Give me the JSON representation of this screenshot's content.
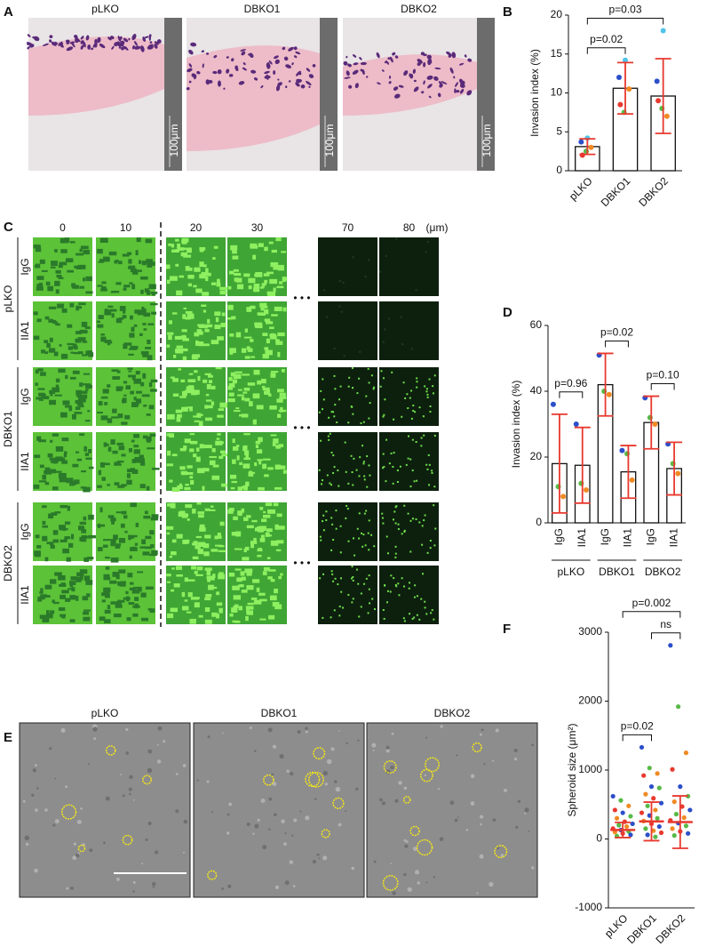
{
  "panels": {
    "A": {
      "letter": "A",
      "labels": [
        "pLKO",
        "DBKO1",
        "DBKO2"
      ],
      "scale_bar": "100μm"
    },
    "C": {
      "letter": "C",
      "columns": [
        "0",
        "10",
        "20",
        "30",
        "70",
        "80"
      ],
      "unit": "(μm)",
      "groups": [
        {
          "name": "pLKO",
          "rows": [
            "IgG",
            "IIA1"
          ]
        },
        {
          "name": "DBKO1",
          "rows": [
            "IgG",
            "IIA1"
          ]
        },
        {
          "name": "DBKO2",
          "rows": [
            "IgG",
            "IIA1"
          ]
        }
      ]
    },
    "E": {
      "letter": "E",
      "labels": [
        "pLKO",
        "DBKO1",
        "DBKO2"
      ]
    }
  },
  "chart_data": [
    {
      "type": "bar",
      "letter": "B",
      "ylabel": "Invasion index (%)",
      "categories": [
        "pLKO",
        "DBKO1",
        "DBKO2"
      ],
      "values": [
        3.1,
        10.6,
        9.6
      ],
      "errors": [
        1.0,
        3.3,
        4.8
      ],
      "points": [
        [
          3.7,
          2.5,
          3.0,
          2.0,
          4.2
        ],
        [
          12.0,
          7.5,
          10.5,
          8.5,
          14.2
        ],
        [
          11.5,
          8,
          7,
          9,
          18
        ]
      ],
      "point_colors": [
        "#2c4fc9",
        "#58b947",
        "#f08a24",
        "#e8392f",
        "#4fc3e8"
      ],
      "bar_color": "#ffffff",
      "error_color": "#e8392f",
      "ylim": [
        0,
        20
      ],
      "yticks": [
        0,
        5,
        10,
        15,
        20
      ],
      "comparisons": [
        {
          "label": "p=0.02",
          "from": 0,
          "to": 1
        },
        {
          "label": "p=0.03",
          "from": 0,
          "to": 2
        }
      ]
    },
    {
      "type": "bar",
      "letter": "D",
      "ylabel": "Invasion index (%)",
      "categories": [
        "IgG",
        "IIA1",
        "IgG",
        "IIA1",
        "IgG",
        "IIA1"
      ],
      "groups": [
        "pLKO",
        "DBKO1",
        "DBKO2"
      ],
      "values": [
        18,
        17.5,
        42,
        15.5,
        30.5,
        16.5
      ],
      "errors": [
        15,
        11.5,
        9.5,
        8,
        8,
        8
      ],
      "points": [
        [
          36,
          11,
          8
        ],
        [
          30,
          12,
          10
        ],
        [
          51,
          40,
          39
        ],
        [
          22,
          21,
          13
        ],
        [
          38,
          32,
          30
        ],
        [
          24,
          18,
          15
        ]
      ],
      "point_colors": [
        "#2c4fc9",
        "#58b947",
        "#f08a24"
      ],
      "bar_color": "#ffffff",
      "error_color": "#e8392f",
      "ylim": [
        0,
        60
      ],
      "yticks": [
        0,
        20,
        40,
        60
      ],
      "comparisons": [
        {
          "label": "p=0.96",
          "from": 0,
          "to": 1
        },
        {
          "label": "p=0.02",
          "from": 2,
          "to": 3
        },
        {
          "label": "p=0.10",
          "from": 4,
          "to": 5
        }
      ]
    },
    {
      "type": "strip",
      "letter": "F",
      "ylabel": "Spheroid size (μm²)",
      "categories": [
        "pLKO",
        "DBKO1",
        "DBKO2"
      ],
      "values": [
        130,
        255,
        245
      ],
      "errors": [
        110,
        280,
        380
      ],
      "points": [
        [
          620,
          560,
          480,
          420,
          380,
          330,
          300,
          250,
          220,
          200,
          180,
          150,
          130,
          110,
          100,
          80,
          60,
          40
        ],
        [
          1330,
          1030,
          950,
          920,
          760,
          740,
          650,
          590,
          520,
          480,
          420,
          380,
          340,
          300,
          260,
          220,
          180,
          150,
          120,
          90,
          60,
          30
        ],
        [
          2810,
          1920,
          1250,
          1010,
          760,
          620,
          540,
          470,
          420,
          360,
          310,
          270,
          230,
          190,
          150,
          110,
          80,
          50
        ]
      ],
      "point_colors": [
        "#2c4fc9",
        "#58b947",
        "#f08a24",
        "#e8392f"
      ],
      "error_color": "#e8392f",
      "ylim": [
        -1000,
        3000
      ],
      "yticks": [
        -1000,
        0,
        1000,
        2000,
        3000
      ],
      "comparisons": [
        {
          "label": "p=0.02",
          "from": 0,
          "to": 1
        },
        {
          "label": "ns",
          "from": 1,
          "to": 2
        },
        {
          "label": "p=0.002",
          "from": 0,
          "to": 2
        }
      ]
    }
  ]
}
